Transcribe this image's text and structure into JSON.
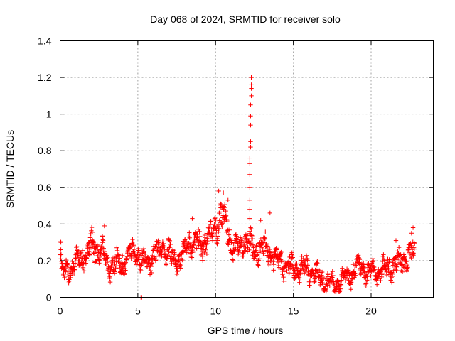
{
  "chart_data": {
    "type": "scatter",
    "title": "Day 068 of 2024, SRMTID for receiver solo",
    "xlabel": "GPS time / hours",
    "ylabel": "SRMTID / TECUs",
    "xlim": [
      0,
      24
    ],
    "ylim": [
      0,
      1.4
    ],
    "x_ticks": [
      0,
      5,
      10,
      15,
      20
    ],
    "x_tick_labels": [
      "0",
      "5",
      "10",
      "15",
      "20"
    ],
    "y_ticks": [
      0,
      0.2,
      0.4,
      0.6,
      0.8,
      1.0,
      1.2,
      1.4
    ],
    "y_tick_labels": [
      "0",
      "0.2",
      "0.4",
      "0.6",
      "0.8",
      "1",
      "1.2",
      "1.4"
    ],
    "grid": true,
    "series": [
      {
        "name": "SRMTID",
        "color": "#ff0000",
        "marker": "plus",
        "profile": [
          [
            0.0,
            0.28
          ],
          [
            0.1,
            0.12
          ],
          [
            0.3,
            0.13
          ],
          [
            0.6,
            0.16
          ],
          [
            0.9,
            0.17
          ],
          [
            1.2,
            0.2
          ],
          [
            1.5,
            0.23
          ],
          [
            1.8,
            0.24
          ],
          [
            2.1,
            0.3
          ],
          [
            2.4,
            0.25
          ],
          [
            2.7,
            0.24
          ],
          [
            3.0,
            0.19
          ],
          [
            3.3,
            0.17
          ],
          [
            3.6,
            0.18
          ],
          [
            3.9,
            0.19
          ],
          [
            4.2,
            0.2
          ],
          [
            4.5,
            0.22
          ],
          [
            4.8,
            0.25
          ],
          [
            5.0,
            0.24
          ],
          [
            5.3,
            0.18
          ],
          [
            5.6,
            0.2
          ],
          [
            6.0,
            0.22
          ],
          [
            6.3,
            0.25
          ],
          [
            6.6,
            0.28
          ],
          [
            7.0,
            0.24
          ],
          [
            7.3,
            0.2
          ],
          [
            7.7,
            0.2
          ],
          [
            8.0,
            0.24
          ],
          [
            8.3,
            0.32
          ],
          [
            8.7,
            0.3
          ],
          [
            9.0,
            0.28
          ],
          [
            9.3,
            0.3
          ],
          [
            9.6,
            0.33
          ],
          [
            10.0,
            0.38
          ],
          [
            10.3,
            0.45
          ],
          [
            10.6,
            0.42
          ],
          [
            11.0,
            0.3
          ],
          [
            11.3,
            0.26
          ],
          [
            11.6,
            0.28
          ],
          [
            12.0,
            0.3
          ],
          [
            12.5,
            0.26
          ],
          [
            13.0,
            0.28
          ],
          [
            13.5,
            0.25
          ],
          [
            14.0,
            0.2
          ],
          [
            14.5,
            0.18
          ],
          [
            15.0,
            0.16
          ],
          [
            15.5,
            0.16
          ],
          [
            16.0,
            0.15
          ],
          [
            16.5,
            0.12
          ],
          [
            17.0,
            0.09
          ],
          [
            17.5,
            0.06
          ],
          [
            18.0,
            0.08
          ],
          [
            18.5,
            0.12
          ],
          [
            19.0,
            0.15
          ],
          [
            19.5,
            0.16
          ],
          [
            20.0,
            0.13
          ],
          [
            20.5,
            0.14
          ],
          [
            21.0,
            0.16
          ],
          [
            21.5,
            0.18
          ],
          [
            22.0,
            0.2
          ],
          [
            22.5,
            0.22
          ],
          [
            22.8,
            0.25
          ]
        ],
        "spike": [
          [
            12.2,
            0.36
          ],
          [
            12.2,
            0.43
          ],
          [
            12.2,
            0.48
          ],
          [
            12.2,
            0.53
          ],
          [
            12.2,
            0.6
          ],
          [
            12.2,
            0.67
          ],
          [
            12.2,
            0.73
          ],
          [
            12.2,
            0.76
          ],
          [
            12.25,
            0.82
          ],
          [
            12.25,
            0.85
          ],
          [
            12.25,
            0.94
          ],
          [
            12.25,
            0.99
          ],
          [
            12.25,
            1.05
          ],
          [
            12.3,
            1.1
          ],
          [
            12.3,
            1.14
          ],
          [
            12.3,
            1.16
          ],
          [
            12.3,
            1.2
          ],
          [
            12.3,
            1.2
          ]
        ],
        "extra_points": [
          [
            5.2,
            0.0
          ],
          [
            5.25,
            0.0
          ],
          [
            0.05,
            0.3
          ],
          [
            0.05,
            0.26
          ],
          [
            2.85,
            0.39
          ],
          [
            10.2,
            0.58
          ],
          [
            10.5,
            0.57
          ],
          [
            10.8,
            0.53
          ],
          [
            13.5,
            0.46
          ],
          [
            12.9,
            0.42
          ],
          [
            22.7,
            0.38
          ],
          [
            22.6,
            0.35
          ],
          [
            21.6,
            0.31
          ],
          [
            8.5,
            0.43
          ]
        ]
      }
    ]
  }
}
